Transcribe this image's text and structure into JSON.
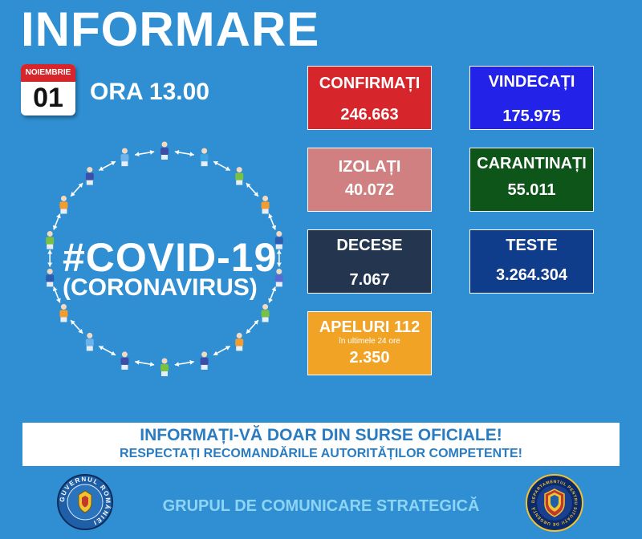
{
  "header": {
    "title": "INFORMARE",
    "calendar_month": "NOIEMBRIE",
    "calendar_day": "01",
    "time": "ORA 13.00"
  },
  "covid": {
    "title": "#COVID-19",
    "subtitle": "(CORONAVIRUS)"
  },
  "stats": {
    "confirmati": {
      "label": "CONFIRMAȚI",
      "value": "246.663",
      "color": "#d6262b"
    },
    "vindecati": {
      "label": "VINDECAȚI",
      "value": "175.975",
      "color": "#2222e8"
    },
    "izolati": {
      "label": "IZOLAȚI",
      "value": "40.072",
      "color": "#d08080"
    },
    "carantinati": {
      "label": "CARANTINAȚI",
      "value": "55.011",
      "color": "#0e5519"
    },
    "decese": {
      "label": "DECESE",
      "value": "7.067",
      "color": "#24364f"
    },
    "teste": {
      "label": "TESTE",
      "value": "3.264.304",
      "color": "#0f3d8c"
    },
    "apeluri": {
      "label": "APELURI 112",
      "sub": "în ultimele 24 ore",
      "value": "2.350",
      "color": "#f0a324"
    }
  },
  "notice": {
    "line1": "INFORMAȚI-VĂ DOAR DIN SURSE OFICIALE!",
    "line2": "RESPECTAȚI RECOMANDĂRILE AUTORITĂȚILOR COMPETENTE!"
  },
  "footer": {
    "text": "GRUPUL DE COMUNICARE STRATEGICĂ",
    "seal_left_text": "GUVERNUL ROMÂNIEI",
    "seal_right_text": "DEPARTAMENTUL PENTRU SITUAȚII DE URGENȚĂ"
  },
  "icons": [
    "people-circle-icon",
    "romanian-government-seal-icon",
    "emergency-department-seal-icon"
  ]
}
